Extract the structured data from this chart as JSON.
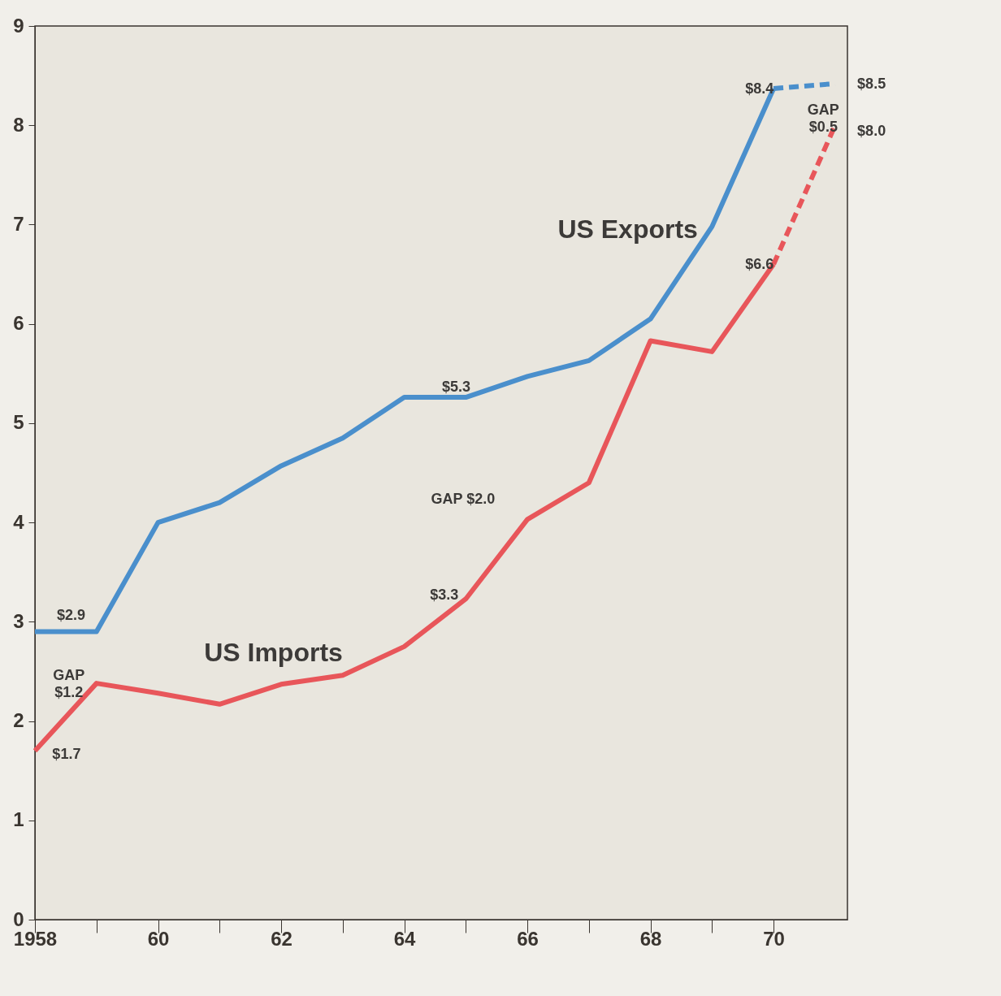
{
  "chart_data": {
    "type": "line",
    "xlim": [
      1958,
      1971.2
    ],
    "ylim": [
      0,
      9
    ],
    "xticks": [
      1958,
      {
        "value": 1959,
        "label": null
      },
      {
        "value": 1960,
        "label": "60"
      },
      {
        "value": 1961,
        "label": null
      },
      {
        "value": 1962,
        "label": "62"
      },
      {
        "value": 1963,
        "label": null
      },
      {
        "value": 1964,
        "label": "64"
      },
      {
        "value": 1965,
        "label": null
      },
      {
        "value": 1966,
        "label": "66"
      },
      {
        "value": 1967,
        "label": null
      },
      {
        "value": 1968,
        "label": "68"
      },
      {
        "value": 1969,
        "label": null
      },
      {
        "value": 1970,
        "label": "70"
      }
    ],
    "yticks": [
      0,
      1,
      2,
      3,
      4,
      5,
      6,
      7,
      8,
      9
    ],
    "grid": false,
    "series": [
      {
        "name": "US Exports",
        "color": "#4a8fcc",
        "line_style": "solid",
        "x": [
          1958,
          1959,
          1960,
          1961,
          1962,
          1963,
          1964,
          1965,
          1966,
          1967,
          1968,
          1969,
          1970
        ],
        "values": [
          2.9,
          2.9,
          4.0,
          4.2,
          4.57,
          4.85,
          5.26,
          5.26,
          5.47,
          5.63,
          6.05,
          6.98,
          8.37
        ]
      },
      {
        "color": "#4a8fcc",
        "line_style": "dashed",
        "x": [
          1970,
          1971
        ],
        "values": [
          8.37,
          8.42
        ]
      },
      {
        "name": "US Imports",
        "color": "#e8565a",
        "line_style": "solid",
        "x": [
          1958,
          1959,
          1960,
          1961,
          1962,
          1963,
          1964,
          1965,
          1966,
          1967,
          1968,
          1969,
          1970
        ],
        "values": [
          1.7,
          2.38,
          2.28,
          2.17,
          2.37,
          2.46,
          2.75,
          3.23,
          4.03,
          4.4,
          5.83,
          5.72,
          6.6
        ]
      },
      {
        "color": "#e8565a",
        "line_style": "dashed",
        "x": [
          1970,
          1971
        ],
        "values": [
          6.6,
          8.0
        ]
      }
    ],
    "annotations": [
      "$2.9",
      "GAP\n$1.2",
      "$1.7",
      "$5.3",
      "GAP $2.0",
      "$3.3",
      "$8.4",
      "$8.5",
      "GAP\n$0.5",
      "$8.0",
      "$6.6"
    ]
  }
}
